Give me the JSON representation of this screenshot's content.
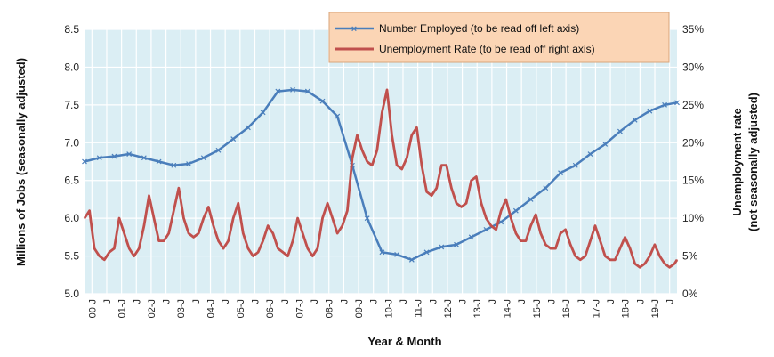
{
  "chart_data": {
    "type": "line",
    "x_axis": {
      "label": "Year & Month",
      "tick_labels": [
        "00-J",
        "J",
        "01-J",
        "J",
        "02-J",
        "J",
        "03-J",
        "J",
        "04-J",
        "J",
        "05-J",
        "J",
        "06-J",
        "J",
        "07-J",
        "J",
        "08-J",
        "J",
        "09-J",
        "J",
        "10-J",
        "J",
        "11-J",
        "J",
        "12-J",
        "J",
        "13-J",
        "J",
        "14-J",
        "J",
        "15-J",
        "J",
        "16-J",
        "J",
        "17-J",
        "J",
        "18-J",
        "J",
        "19-J",
        "J"
      ],
      "start": "2000-01",
      "end": "2019-12"
    },
    "y_axis_left": {
      "label": "Millions of Jobs (seasonally adjusted)",
      "range": [
        5.0,
        8.5
      ],
      "ticks": [
        "5.0",
        "5.5",
        "6.0",
        "6.5",
        "7.0",
        "7.5",
        "8.0",
        "8.5"
      ]
    },
    "y_axis_right": {
      "label_line1": "Unemployment rate",
      "label_line2": "(not seasonally adjusted)",
      "range": [
        0,
        35
      ],
      "ticks": [
        "0%",
        "5%",
        "10%",
        "15%",
        "20%",
        "25%",
        "30%",
        "35%"
      ]
    },
    "grid": true,
    "legend_position": "top-right",
    "series": [
      {
        "name": "Number Employed (to be read off left axis)",
        "axis": "left",
        "color": "#4a7ebb",
        "marker": "x",
        "points": [
          [
            "2000-01",
            6.75
          ],
          [
            "2000-07",
            6.8
          ],
          [
            "2001-01",
            6.82
          ],
          [
            "2001-07",
            6.85
          ],
          [
            "2002-01",
            6.8
          ],
          [
            "2002-07",
            6.75
          ],
          [
            "2003-01",
            6.7
          ],
          [
            "2003-07",
            6.72
          ],
          [
            "2004-01",
            6.8
          ],
          [
            "2004-07",
            6.9
          ],
          [
            "2005-01",
            7.05
          ],
          [
            "2005-07",
            7.2
          ],
          [
            "2006-01",
            7.4
          ],
          [
            "2006-07",
            7.68
          ],
          [
            "2007-01",
            7.7
          ],
          [
            "2007-07",
            7.68
          ],
          [
            "2008-01",
            7.55
          ],
          [
            "2008-07",
            7.35
          ],
          [
            "2009-01",
            6.7
          ],
          [
            "2009-07",
            6.0
          ],
          [
            "2010-01",
            5.55
          ],
          [
            "2010-07",
            5.52
          ],
          [
            "2011-01",
            5.45
          ],
          [
            "2011-07",
            5.55
          ],
          [
            "2012-01",
            5.62
          ],
          [
            "2012-07",
            5.65
          ],
          [
            "2013-01",
            5.75
          ],
          [
            "2013-07",
            5.85
          ],
          [
            "2014-01",
            5.95
          ],
          [
            "2014-07",
            6.1
          ],
          [
            "2015-01",
            6.25
          ],
          [
            "2015-07",
            6.4
          ],
          [
            "2016-01",
            6.6
          ],
          [
            "2016-07",
            6.7
          ],
          [
            "2017-01",
            6.85
          ],
          [
            "2017-07",
            6.98
          ],
          [
            "2018-01",
            7.15
          ],
          [
            "2018-07",
            7.3
          ],
          [
            "2019-01",
            7.42
          ],
          [
            "2019-07",
            7.5
          ],
          [
            "2019-12",
            7.53
          ]
        ]
      },
      {
        "name": "Unemployment Rate (to be read off right axis)",
        "axis": "right",
        "color": "#c0504d",
        "points": [
          [
            "2000-01",
            10
          ],
          [
            "2000-03",
            11
          ],
          [
            "2000-05",
            6
          ],
          [
            "2000-07",
            5
          ],
          [
            "2000-09",
            4.5
          ],
          [
            "2000-11",
            5.5
          ],
          [
            "2001-01",
            6
          ],
          [
            "2001-03",
            10
          ],
          [
            "2001-05",
            8
          ],
          [
            "2001-07",
            6
          ],
          [
            "2001-09",
            5
          ],
          [
            "2001-11",
            6
          ],
          [
            "2002-01",
            9
          ],
          [
            "2002-03",
            13
          ],
          [
            "2002-05",
            10
          ],
          [
            "2002-07",
            7
          ],
          [
            "2002-09",
            7
          ],
          [
            "2002-11",
            8
          ],
          [
            "2003-01",
            11
          ],
          [
            "2003-03",
            14
          ],
          [
            "2003-05",
            10
          ],
          [
            "2003-07",
            8
          ],
          [
            "2003-09",
            7.5
          ],
          [
            "2003-11",
            8
          ],
          [
            "2004-01",
            10
          ],
          [
            "2004-03",
            11.5
          ],
          [
            "2004-05",
            9
          ],
          [
            "2004-07",
            7
          ],
          [
            "2004-09",
            6
          ],
          [
            "2004-11",
            7
          ],
          [
            "2005-01",
            10
          ],
          [
            "2005-03",
            12
          ],
          [
            "2005-05",
            8
          ],
          [
            "2005-07",
            6
          ],
          [
            "2005-09",
            5
          ],
          [
            "2005-11",
            5.5
          ],
          [
            "2006-01",
            7
          ],
          [
            "2006-03",
            9
          ],
          [
            "2006-05",
            8
          ],
          [
            "2006-07",
            6
          ],
          [
            "2006-09",
            5.5
          ],
          [
            "2006-11",
            5
          ],
          [
            "2007-01",
            7
          ],
          [
            "2007-03",
            10
          ],
          [
            "2007-05",
            8
          ],
          [
            "2007-07",
            6
          ],
          [
            "2007-09",
            5
          ],
          [
            "2007-11",
            6
          ],
          [
            "2008-01",
            10
          ],
          [
            "2008-03",
            12
          ],
          [
            "2008-05",
            10
          ],
          [
            "2008-07",
            8
          ],
          [
            "2008-09",
            9
          ],
          [
            "2008-11",
            11
          ],
          [
            "2009-01",
            18
          ],
          [
            "2009-03",
            21
          ],
          [
            "2009-05",
            19
          ],
          [
            "2009-07",
            17.5
          ],
          [
            "2009-09",
            17
          ],
          [
            "2009-11",
            19
          ],
          [
            "2010-01",
            24
          ],
          [
            "2010-03",
            27
          ],
          [
            "2010-05",
            21
          ],
          [
            "2010-07",
            17
          ],
          [
            "2010-09",
            16.5
          ],
          [
            "2010-11",
            18
          ],
          [
            "2011-01",
            21
          ],
          [
            "2011-03",
            22
          ],
          [
            "2011-05",
            17
          ],
          [
            "2011-07",
            13.5
          ],
          [
            "2011-09",
            13
          ],
          [
            "2011-11",
            14
          ],
          [
            "2012-01",
            17
          ],
          [
            "2012-03",
            17
          ],
          [
            "2012-05",
            14
          ],
          [
            "2012-07",
            12
          ],
          [
            "2012-09",
            11.5
          ],
          [
            "2012-11",
            12
          ],
          [
            "2013-01",
            15
          ],
          [
            "2013-03",
            15.5
          ],
          [
            "2013-05",
            12
          ],
          [
            "2013-07",
            10
          ],
          [
            "2013-09",
            9
          ],
          [
            "2013-11",
            8.5
          ],
          [
            "2014-01",
            11
          ],
          [
            "2014-03",
            12.5
          ],
          [
            "2014-05",
            10
          ],
          [
            "2014-07",
            8
          ],
          [
            "2014-09",
            7
          ],
          [
            "2014-11",
            7
          ],
          [
            "2015-01",
            9
          ],
          [
            "2015-03",
            10.5
          ],
          [
            "2015-05",
            8
          ],
          [
            "2015-07",
            6.5
          ],
          [
            "2015-09",
            6
          ],
          [
            "2015-11",
            6
          ],
          [
            "2016-01",
            8
          ],
          [
            "2016-03",
            8.5
          ],
          [
            "2016-05",
            6.5
          ],
          [
            "2016-07",
            5
          ],
          [
            "2016-09",
            4.5
          ],
          [
            "2016-11",
            5
          ],
          [
            "2017-01",
            7
          ],
          [
            "2017-03",
            9
          ],
          [
            "2017-05",
            7
          ],
          [
            "2017-07",
            5
          ],
          [
            "2017-09",
            4.5
          ],
          [
            "2017-11",
            4.5
          ],
          [
            "2018-01",
            6
          ],
          [
            "2018-03",
            7.5
          ],
          [
            "2018-05",
            6
          ],
          [
            "2018-07",
            4
          ],
          [
            "2018-09",
            3.5
          ],
          [
            "2018-11",
            4
          ],
          [
            "2019-01",
            5
          ],
          [
            "2019-03",
            6.5
          ],
          [
            "2019-05",
            5
          ],
          [
            "2019-07",
            4
          ],
          [
            "2019-09",
            3.5
          ],
          [
            "2019-11",
            4
          ],
          [
            "2019-12",
            4.5
          ]
        ]
      }
    ]
  }
}
